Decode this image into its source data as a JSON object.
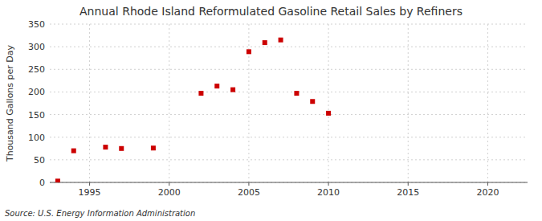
{
  "chart_data": {
    "type": "scatter",
    "title": "Annual Rhode Island Reformulated Gasoline Retail Sales by Refiners",
    "y_label": "Thousand Gallons per Day",
    "annotations": [
      "Source: U.S. Energy Information Administration"
    ],
    "x": [
      1993,
      1994,
      1996,
      1997,
      1999,
      2002,
      2003,
      2004,
      2005,
      2006,
      2007,
      2008,
      2009,
      2010
    ],
    "values": [
      3,
      70,
      78,
      75,
      76,
      197,
      213,
      205,
      289,
      309,
      315,
      197,
      179,
      153
    ],
    "color": "#cc0000",
    "marker": "square",
    "xlim": [
      1992.5,
      2022.5
    ],
    "ylim": [
      0,
      350
    ],
    "xticks": [
      1995,
      2000,
      2005,
      2010,
      2015,
      2020
    ],
    "yticks": [
      0,
      50,
      100,
      150,
      200,
      250,
      300,
      350
    ],
    "grid": true
  }
}
